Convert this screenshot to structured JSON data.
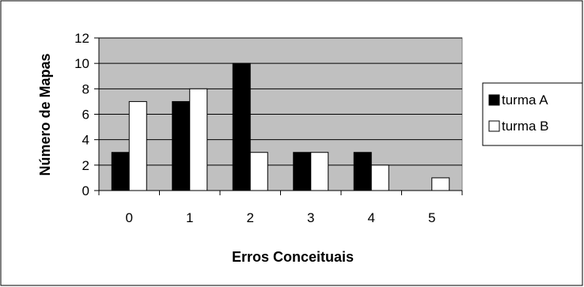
{
  "chart_data": {
    "type": "bar",
    "title": "",
    "xlabel": "Erros Conceituais",
    "ylabel": "Número de Mapas",
    "categories": [
      "0",
      "1",
      "2",
      "3",
      "4",
      "5"
    ],
    "series": [
      {
        "name": "turma A",
        "values": [
          3,
          7,
          10,
          3,
          3,
          0
        ],
        "color": "#000000"
      },
      {
        "name": "turma B",
        "values": [
          7,
          8,
          3,
          3,
          2,
          1
        ],
        "color": "#ffffff"
      }
    ],
    "ylim": [
      0,
      12
    ],
    "yticks": [
      "0",
      "2",
      "4",
      "6",
      "8",
      "10",
      "12"
    ],
    "grid": true,
    "plot_background": "#c0c0c0",
    "legend_position": "right"
  }
}
